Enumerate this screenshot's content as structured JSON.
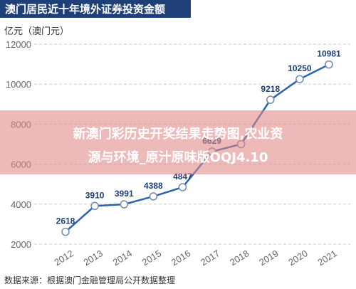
{
  "title": "澳门居民近十年境外证券投资金额",
  "unit_label": "亿元（澳门元）",
  "overlay": {
    "line1": "新澳门彩历史开奖结果走势图,农业资",
    "line2": "源与环境_原汁原味版OQJ4.10"
  },
  "source": "数据来源：根据澳门金融管理局公开数据整理",
  "chart_data": {
    "type": "line",
    "title": "澳门居民近十年境外证券投资金额",
    "ylabel": "亿元（澳门元）",
    "xlabel": "",
    "x": [
      "2012",
      "2013",
      "2014",
      "2015",
      "2016",
      "2017",
      "2018",
      "2019",
      "2020",
      "2021"
    ],
    "ylim": [
      2000,
      12000
    ],
    "yticks": [
      2000,
      4000,
      6000,
      8000,
      10000,
      12000
    ],
    "grid": true,
    "series": [
      {
        "values": [
          2618,
          3910,
          3991,
          4388,
          4847,
          6629,
          7000,
          9218,
          10250,
          10981
        ],
        "labels": [
          "2618",
          "3910",
          "3991",
          "4388",
          "4847",
          "6629",
          "",
          "9218",
          "10250",
          "10981"
        ]
      }
    ],
    "colors": {
      "line": "#2b63ad",
      "marker_edge": "#7a8fb0",
      "labels": "#1e3f78",
      "title_bg": "#1e3f78"
    }
  }
}
